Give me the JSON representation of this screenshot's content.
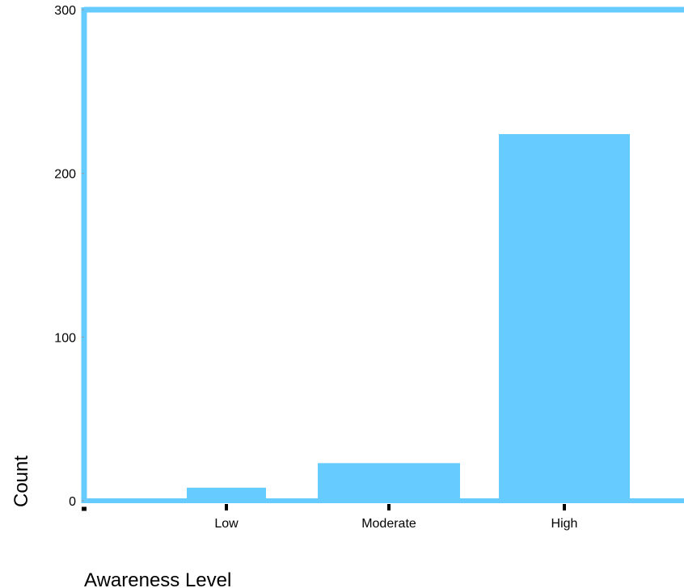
{
  "chart_data": {
    "type": "bar",
    "categories": [
      "Low",
      "Moderate",
      "High"
    ],
    "values": [
      8,
      23,
      224
    ],
    "title": "",
    "xlabel": "Awareness Level",
    "ylabel": "Count",
    "ylim": [
      0,
      300
    ],
    "yticks": [
      0,
      100,
      200,
      300
    ],
    "grid": false,
    "colors": {
      "bar": "#66CCFF",
      "frame": "#66CCFF",
      "axis": "#000000"
    }
  }
}
